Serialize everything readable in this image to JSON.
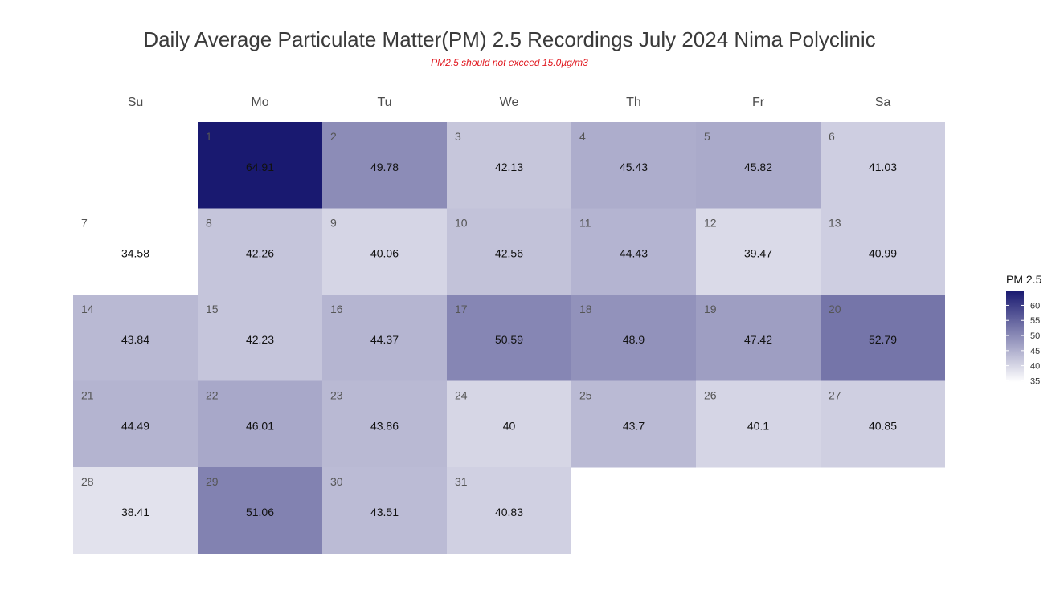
{
  "chart_data": {
    "type": "heatmap",
    "title": "Daily Average Particulate Matter(PM) 2.5 Recordings July 2024 Nima Polyclinic",
    "subtitle": "PM2.5 should not exceed 15.0µg/m3",
    "weekdays": [
      "Su",
      "Mo",
      "Tu",
      "We",
      "Th",
      "Fr",
      "Sa"
    ],
    "first_weekday_index": 1,
    "days": [
      {
        "day": 1,
        "value": 64.91
      },
      {
        "day": 2,
        "value": 49.78
      },
      {
        "day": 3,
        "value": 42.13
      },
      {
        "day": 4,
        "value": 45.43
      },
      {
        "day": 5,
        "value": 45.82
      },
      {
        "day": 6,
        "value": 41.03
      },
      {
        "day": 7,
        "value": 34.58
      },
      {
        "day": 8,
        "value": 42.26
      },
      {
        "day": 9,
        "value": 40.06
      },
      {
        "day": 10,
        "value": 42.56
      },
      {
        "day": 11,
        "value": 44.43
      },
      {
        "day": 12,
        "value": 39.47
      },
      {
        "day": 13,
        "value": 40.99
      },
      {
        "day": 14,
        "value": 43.84
      },
      {
        "day": 15,
        "value": 42.23
      },
      {
        "day": 16,
        "value": 44.37
      },
      {
        "day": 17,
        "value": 50.59
      },
      {
        "day": 18,
        "value": 48.9
      },
      {
        "day": 19,
        "value": 47.42
      },
      {
        "day": 20,
        "value": 52.79
      },
      {
        "day": 21,
        "value": 44.49
      },
      {
        "day": 22,
        "value": 46.01
      },
      {
        "day": 23,
        "value": 43.86
      },
      {
        "day": 24,
        "value": 40
      },
      {
        "day": 25,
        "value": 43.7
      },
      {
        "day": 26,
        "value": 40.1
      },
      {
        "day": 27,
        "value": 40.85
      },
      {
        "day": 28,
        "value": 38.41
      },
      {
        "day": 29,
        "value": 51.06
      },
      {
        "day": 30,
        "value": 43.51
      },
      {
        "day": 31,
        "value": 40.83
      }
    ],
    "legend": {
      "title": "PM 2.5",
      "ticks": [
        35,
        40,
        45,
        50,
        55,
        60
      ],
      "range": [
        34.58,
        64.91
      ],
      "color_low": "#ffffff",
      "color_high": "#191970",
      "placement": "right"
    }
  }
}
